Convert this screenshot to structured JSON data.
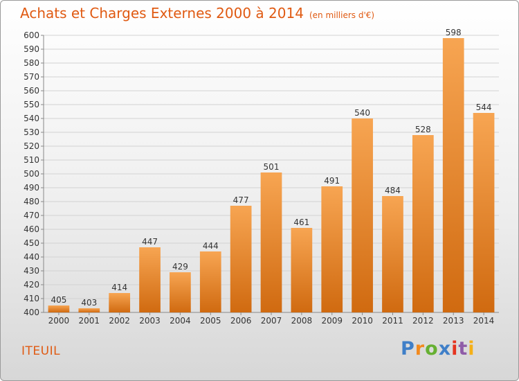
{
  "chart_data": {
    "type": "bar",
    "title": "Achats et Charges Externes 2000 à 2014",
    "subtitle": "(en milliers d'€)",
    "categories": [
      "2000",
      "2001",
      "2002",
      "2003",
      "2004",
      "2005",
      "2006",
      "2007",
      "2008",
      "2009",
      "2010",
      "2011",
      "2012",
      "2013",
      "2014"
    ],
    "values": [
      405,
      403,
      414,
      447,
      429,
      444,
      477,
      501,
      461,
      491,
      540,
      484,
      528,
      598,
      544
    ],
    "ylim": [
      400,
      600
    ],
    "ytick_step": 10,
    "grid": true,
    "bar_color_top": "#f7a552",
    "bar_color_bottom": "#d06a10"
  },
  "footer": {
    "commune": "ITEUIL",
    "brand_letters": [
      "P",
      "r",
      "o",
      "x",
      "i",
      "t",
      "i"
    ],
    "brand_colors": [
      "#3f7fc8",
      "#f28a1e",
      "#66b032",
      "#3f7fc8",
      "#e5341f",
      "#8f5ca8",
      "#f5b018"
    ]
  }
}
